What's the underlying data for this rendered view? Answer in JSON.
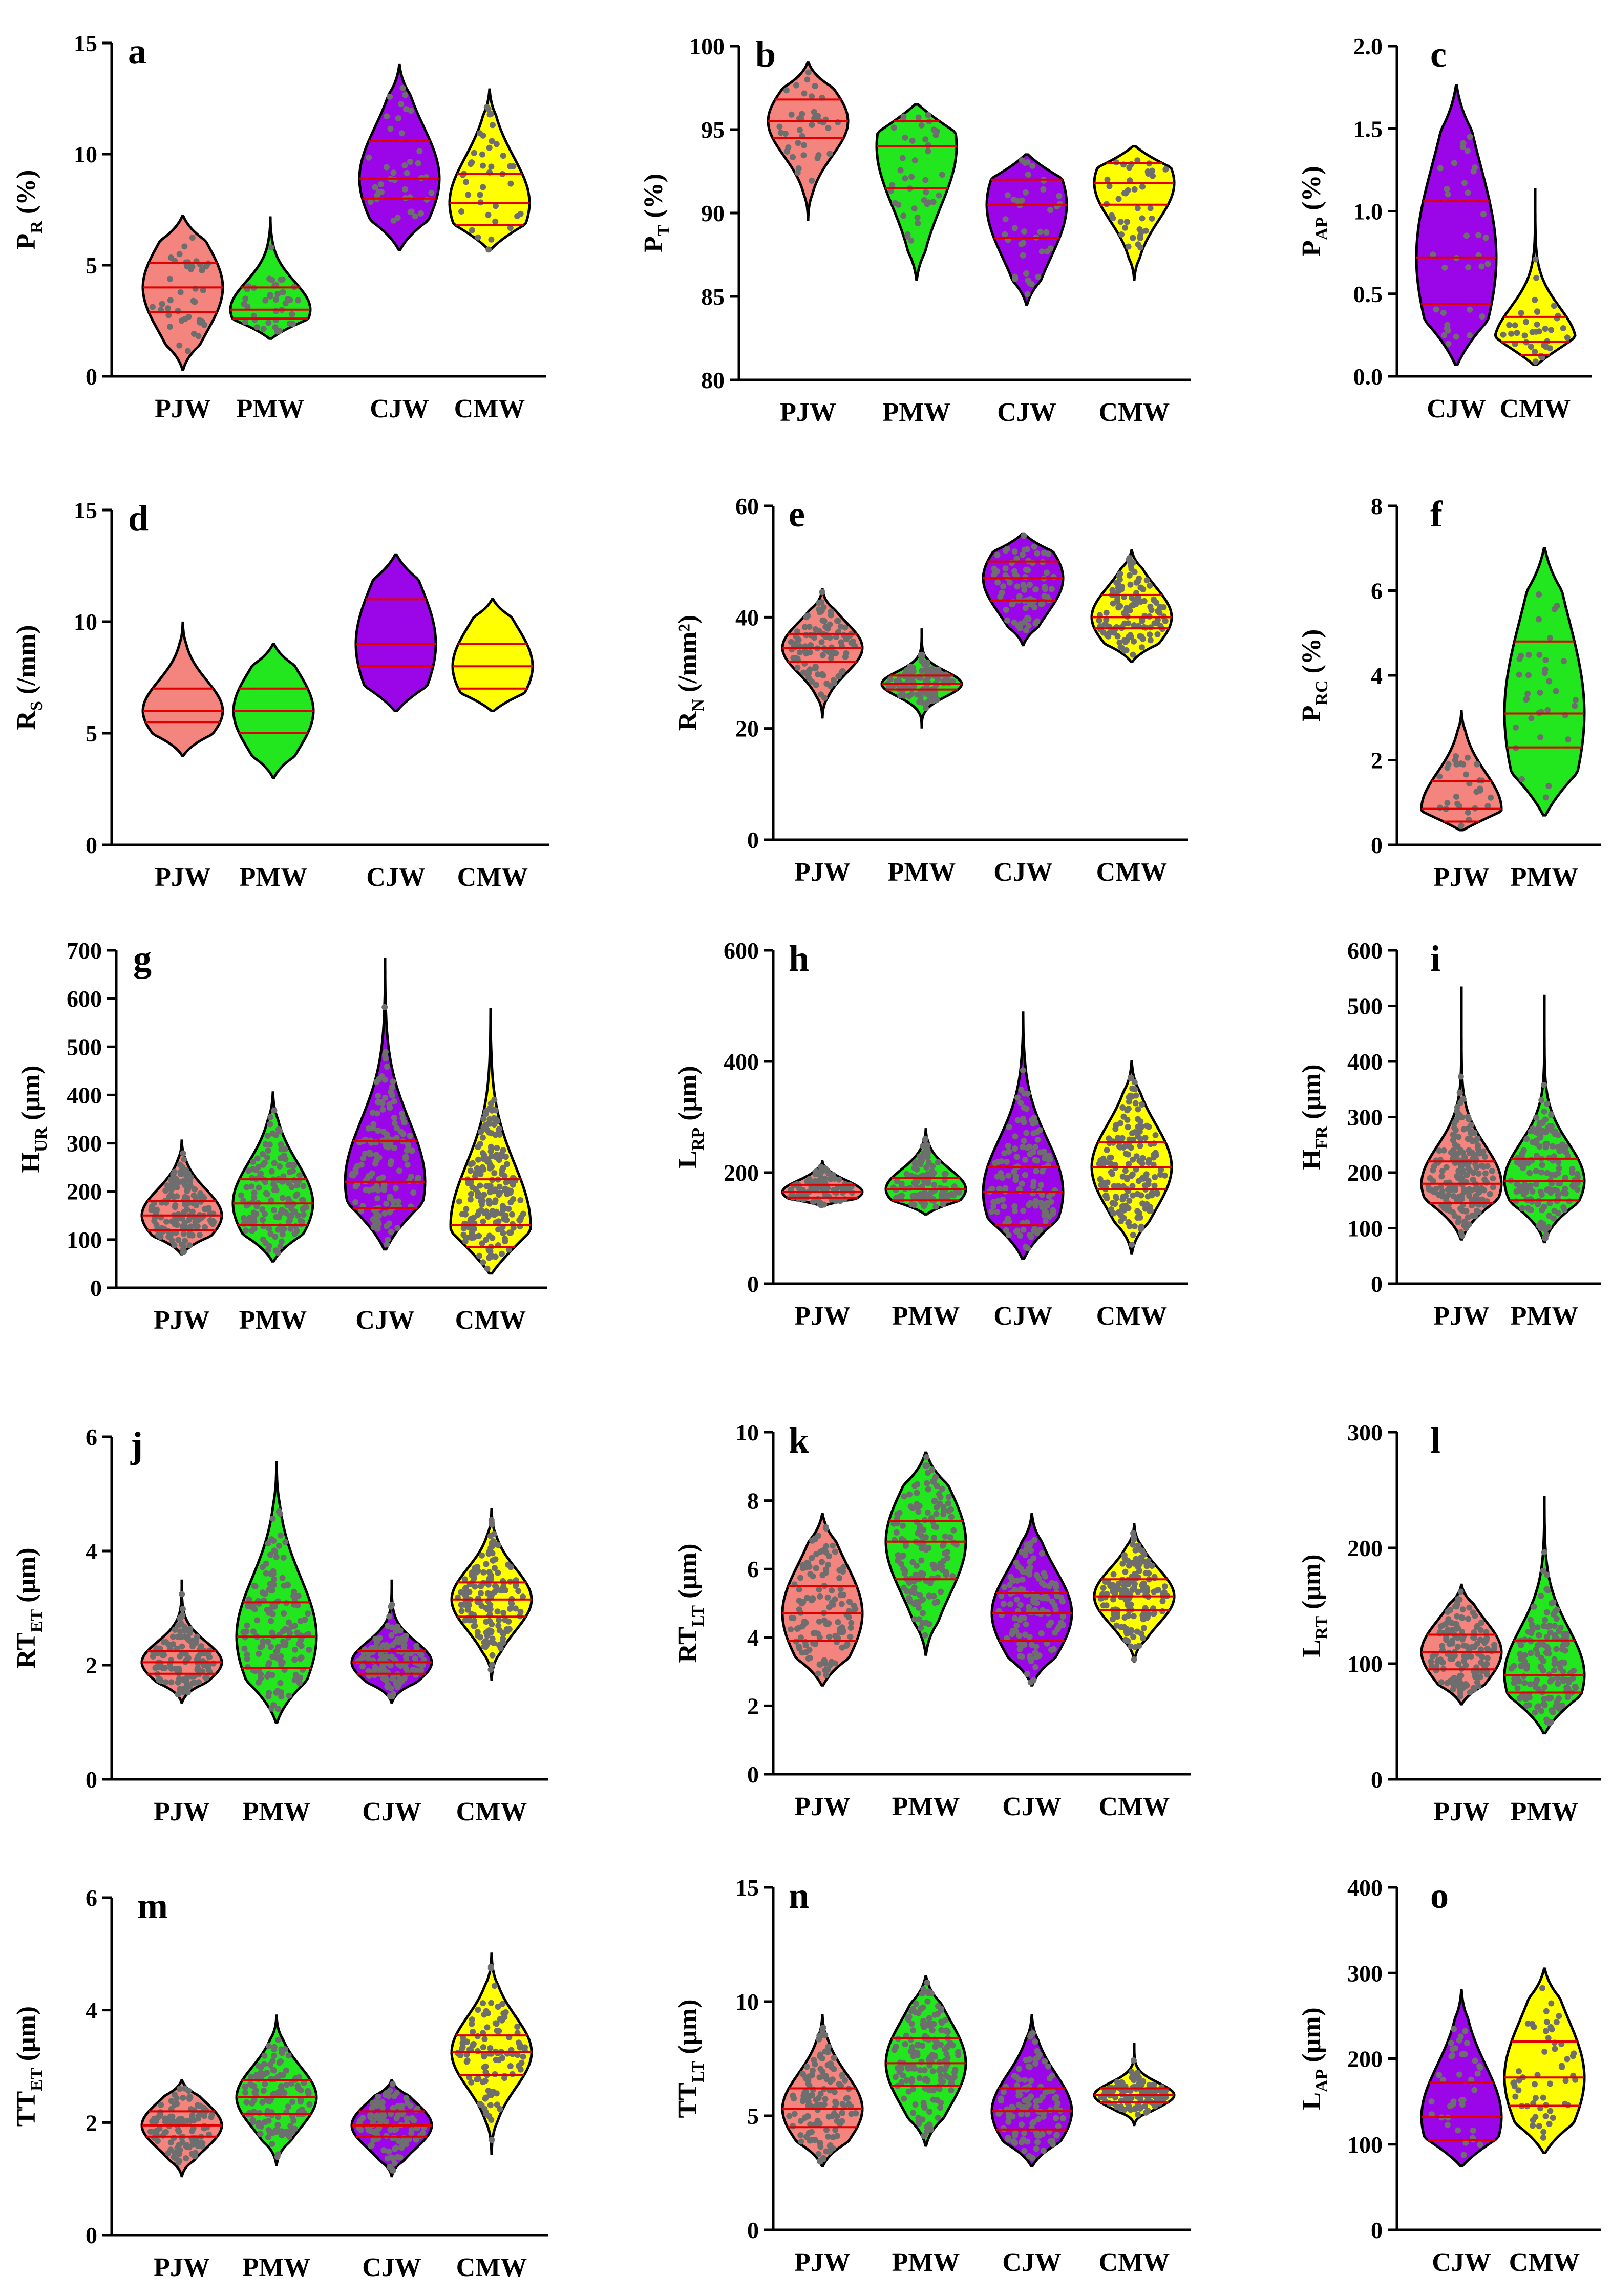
{
  "colors": {
    "PJW": "#f4857e",
    "PMW": "#22e61e",
    "CJW": "#9b06e8",
    "CMW": "#ffff00",
    "quartile": "#e00000",
    "dot": "#6e6e6e"
  },
  "chart_data": [
    {
      "letter": "a",
      "type": "violin",
      "ylabel": "P",
      "ylabel_sub": "R",
      "ylabel_suffix": " (%)",
      "ylim": [
        0,
        15
      ],
      "yticks": [
        0,
        5,
        10,
        15
      ],
      "categories": [
        "PJW",
        "PMW",
        "CJW",
        "CMW"
      ],
      "series": [
        {
          "name": "PJW",
          "min": 0.3,
          "max": 7.2,
          "q1": 2.9,
          "median": 4.0,
          "q3": 5.1,
          "n": 40
        },
        {
          "name": "PMW",
          "min": 1.7,
          "max": 7.2,
          "q1": 2.6,
          "median": 3.0,
          "q3": 4.0,
          "n": 40
        },
        {
          "name": "CJW",
          "min": 5.7,
          "max": 14.0,
          "q1": 8.0,
          "median": 8.9,
          "q3": 10.6,
          "n": 40
        },
        {
          "name": "CMW",
          "min": 5.7,
          "max": 12.9,
          "q1": 6.8,
          "median": 7.8,
          "q3": 9.1,
          "n": 40
        }
      ]
    },
    {
      "letter": "b",
      "type": "violin",
      "ylabel": "P",
      "ylabel_sub": "T",
      "ylabel_suffix": " (%)",
      "ylim": [
        80,
        100
      ],
      "yticks": [
        80,
        85,
        90,
        95,
        100
      ],
      "categories": [
        "PJW",
        "PMW",
        "CJW",
        "CMW"
      ],
      "series": [
        {
          "name": "PJW",
          "min": 89.6,
          "max": 99.0,
          "q1": 94.5,
          "median": 95.5,
          "q3": 96.8,
          "n": 40
        },
        {
          "name": "PMW",
          "min": 86.0,
          "max": 96.5,
          "q1": 91.5,
          "median": 94.0,
          "q3": 95.5,
          "n": 40
        },
        {
          "name": "CJW",
          "min": 84.5,
          "max": 93.5,
          "q1": 88.5,
          "median": 90.5,
          "q3": 92.0,
          "n": 40
        },
        {
          "name": "CMW",
          "min": 86.0,
          "max": 94.0,
          "q1": 90.5,
          "median": 91.8,
          "q3": 93.0,
          "n": 40
        }
      ]
    },
    {
      "letter": "c",
      "type": "violin",
      "ylabel": "P",
      "ylabel_sub": "AP",
      "ylabel_suffix": " (%)",
      "ylim": [
        0,
        2
      ],
      "yticks": [
        "0.0",
        "0.5",
        "1.0",
        "1.5",
        "2.0"
      ],
      "categories": [
        "CJW",
        "CMW"
      ],
      "series": [
        {
          "name": "CJW",
          "min": 0.07,
          "max": 1.76,
          "q1": 0.44,
          "median": 0.72,
          "q3": 1.06,
          "n": 35
        },
        {
          "name": "CMW",
          "min": 0.07,
          "max": 1.14,
          "q1": 0.13,
          "median": 0.21,
          "q3": 0.36,
          "n": 35
        }
      ]
    },
    {
      "letter": "d",
      "type": "violin",
      "ylabel": "R",
      "ylabel_sub": "S",
      "ylabel_suffix": " (/mm)",
      "ylim": [
        0,
        15
      ],
      "yticks": [
        0,
        5,
        10,
        15
      ],
      "categories": [
        "PJW",
        "PMW",
        "CJW",
        "CMW"
      ],
      "series": [
        {
          "name": "PJW",
          "min": 4.0,
          "max": 10.0,
          "q1": 5.5,
          "median": 6.0,
          "q3": 7.0,
          "n": 0
        },
        {
          "name": "PMW",
          "min": 3.0,
          "max": 9.0,
          "q1": 5.0,
          "median": 6.0,
          "q3": 7.0,
          "n": 0
        },
        {
          "name": "CJW",
          "min": 6.0,
          "max": 13.0,
          "q1": 8.0,
          "median": 9.0,
          "q3": 11.0,
          "n": 0
        },
        {
          "name": "CMW",
          "min": 6.0,
          "max": 11.0,
          "q1": 7.0,
          "median": 8.0,
          "q3": 9.0,
          "n": 0
        }
      ]
    },
    {
      "letter": "e",
      "type": "violin",
      "ylabel": "R",
      "ylabel_sub": "N",
      "ylabel_suffix": " (/mm²)",
      "ylim": [
        0,
        60
      ],
      "yticks": [
        0,
        20,
        40,
        60
      ],
      "categories": [
        "PJW",
        "PMW",
        "CJW",
        "CMW"
      ],
      "series": [
        {
          "name": "PJW",
          "min": 22,
          "max": 45,
          "q1": 32,
          "median": 34.5,
          "q3": 37,
          "n": 110
        },
        {
          "name": "PMW",
          "min": 20,
          "max": 38,
          "q1": 27,
          "median": 28,
          "q3": 29.5,
          "n": 110
        },
        {
          "name": "CJW",
          "min": 35,
          "max": 55,
          "q1": 43,
          "median": 47,
          "q3": 50,
          "n": 80
        },
        {
          "name": "CMW",
          "min": 32,
          "max": 52,
          "q1": 38,
          "median": 40,
          "q3": 44,
          "n": 120
        }
      ]
    },
    {
      "letter": "f",
      "type": "violin",
      "ylabel": "P",
      "ylabel_sub": "RC",
      "ylabel_suffix": " (%)",
      "ylim": [
        0,
        8
      ],
      "yticks": [
        0,
        2,
        4,
        6,
        8
      ],
      "categories": [
        "PJW",
        "PMW"
      ],
      "series": [
        {
          "name": "PJW",
          "min": 0.35,
          "max": 3.15,
          "q1": 0.55,
          "median": 0.85,
          "q3": 1.5,
          "n": 30
        },
        {
          "name": "PMW",
          "min": 0.7,
          "max": 7.0,
          "q1": 2.3,
          "median": 3.1,
          "q3": 4.8,
          "n": 35
        }
      ]
    },
    {
      "letter": "g",
      "type": "violin",
      "ylabel": "H",
      "ylabel_sub": "UR",
      "ylabel_suffix": " (μm)",
      "ylim": [
        0,
        700
      ],
      "yticks": [
        0,
        100,
        200,
        300,
        400,
        500,
        600,
        700
      ],
      "categories": [
        "PJW",
        "PMW",
        "CJW",
        "CMW"
      ],
      "series": [
        {
          "name": "PJW",
          "min": 70,
          "max": 305,
          "q1": 120,
          "median": 150,
          "q3": 180,
          "n": 150
        },
        {
          "name": "PMW",
          "min": 55,
          "max": 405,
          "q1": 130,
          "median": 175,
          "q3": 225,
          "n": 150
        },
        {
          "name": "CJW",
          "min": 80,
          "max": 685,
          "q1": 165,
          "median": 220,
          "q3": 305,
          "n": 140
        },
        {
          "name": "CMW",
          "min": 30,
          "max": 580,
          "q1": 85,
          "median": 130,
          "q3": 225,
          "n": 200
        }
      ]
    },
    {
      "letter": "h",
      "type": "violin",
      "ylabel": "L",
      "ylabel_sub": "RP",
      "ylabel_suffix": " (μm)",
      "ylim": [
        0,
        600
      ],
      "yticks": [
        0,
        200,
        400,
        600
      ],
      "categories": [
        "PJW",
        "PMW",
        "CJW",
        "CMW"
      ],
      "series": [
        {
          "name": "PJW",
          "min": 140,
          "max": 220,
          "q1": 155,
          "median": 165,
          "q3": 178,
          "n": 90
        },
        {
          "name": "PMW",
          "min": 125,
          "max": 280,
          "q1": 150,
          "median": 170,
          "q3": 190,
          "n": 110
        },
        {
          "name": "CJW",
          "min": 45,
          "max": 490,
          "q1": 105,
          "median": 165,
          "q3": 210,
          "n": 130
        },
        {
          "name": "CMW",
          "min": 55,
          "max": 400,
          "q1": 170,
          "median": 210,
          "q3": 255,
          "n": 170
        }
      ]
    },
    {
      "letter": "i",
      "type": "violin",
      "ylabel": "H",
      "ylabel_sub": "FR",
      "ylabel_suffix": " (μm)",
      "ylim": [
        0,
        600
      ],
      "yticks": [
        0,
        100,
        200,
        300,
        400,
        500,
        600
      ],
      "categories": [
        "PJW",
        "PMW"
      ],
      "series": [
        {
          "name": "PJW",
          "min": 80,
          "max": 535,
          "q1": 145,
          "median": 180,
          "q3": 220,
          "n": 200
        },
        {
          "name": "PMW",
          "min": 75,
          "max": 520,
          "q1": 150,
          "median": 185,
          "q3": 225,
          "n": 150
        }
      ]
    },
    {
      "letter": "j",
      "type": "violin",
      "ylabel": "RT",
      "ylabel_sub": "ET",
      "ylabel_suffix": " (μm)",
      "ylim": [
        0,
        6
      ],
      "yticks": [
        0,
        2,
        4,
        6
      ],
      "categories": [
        "PJW",
        "PMW",
        "CJW",
        "CMW"
      ],
      "series": [
        {
          "name": "PJW",
          "min": 1.35,
          "max": 3.5,
          "q1": 1.85,
          "median": 2.05,
          "q3": 2.25,
          "n": 120
        },
        {
          "name": "PMW",
          "min": 1.0,
          "max": 5.55,
          "q1": 1.95,
          "median": 2.5,
          "q3": 3.1,
          "n": 150
        },
        {
          "name": "CJW",
          "min": 1.35,
          "max": 3.5,
          "q1": 1.85,
          "median": 2.05,
          "q3": 2.25,
          "n": 120
        },
        {
          "name": "CMW",
          "min": 1.75,
          "max": 4.75,
          "q1": 2.85,
          "median": 3.15,
          "q3": 3.45,
          "n": 150
        }
      ]
    },
    {
      "letter": "k",
      "type": "violin",
      "ylabel": "RT",
      "ylabel_sub": "LT",
      "ylabel_suffix": " (μm)",
      "ylim": [
        0,
        10
      ],
      "yticks": [
        0,
        2,
        4,
        6,
        8,
        10
      ],
      "categories": [
        "PJW",
        "PMW",
        "CJW",
        "CMW"
      ],
      "series": [
        {
          "name": "PJW",
          "min": 2.6,
          "max": 7.6,
          "q1": 3.9,
          "median": 4.7,
          "q3": 5.5,
          "n": 130
        },
        {
          "name": "PMW",
          "min": 3.5,
          "max": 9.4,
          "q1": 5.7,
          "median": 6.8,
          "q3": 7.4,
          "n": 150
        },
        {
          "name": "CJW",
          "min": 2.6,
          "max": 7.6,
          "q1": 3.9,
          "median": 4.7,
          "q3": 5.3,
          "n": 130
        },
        {
          "name": "CMW",
          "min": 3.3,
          "max": 7.3,
          "q1": 4.8,
          "median": 5.2,
          "q3": 5.7,
          "n": 150
        }
      ]
    },
    {
      "letter": "l",
      "type": "violin",
      "ylabel": "L",
      "ylabel_sub": "RT",
      "ylabel_suffix": " (μm)",
      "ylim": [
        0,
        300
      ],
      "yticks": [
        0,
        100,
        200,
        300
      ],
      "categories": [
        "PJW",
        "PMW"
      ],
      "series": [
        {
          "name": "PJW",
          "min": 65,
          "max": 168,
          "q1": 95,
          "median": 110,
          "q3": 125,
          "n": 150
        },
        {
          "name": "PMW",
          "min": 40,
          "max": 245,
          "q1": 75,
          "median": 90,
          "q3": 120,
          "n": 150
        }
      ]
    },
    {
      "letter": "m",
      "type": "violin",
      "ylabel": "TT",
      "ylabel_sub": "ET",
      "ylabel_suffix": " (μm)",
      "ylim": [
        0,
        6
      ],
      "yticks": [
        0,
        2,
        4,
        6
      ],
      "categories": [
        "PJW",
        "PMW",
        "CJW",
        "CMW"
      ],
      "series": [
        {
          "name": "PJW",
          "min": 1.05,
          "max": 2.75,
          "q1": 1.75,
          "median": 1.95,
          "q3": 2.2,
          "n": 110
        },
        {
          "name": "PMW",
          "min": 1.25,
          "max": 3.9,
          "q1": 2.15,
          "median": 2.45,
          "q3": 2.75,
          "n": 130
        },
        {
          "name": "CJW",
          "min": 1.05,
          "max": 2.75,
          "q1": 1.75,
          "median": 1.95,
          "q3": 2.2,
          "n": 110
        },
        {
          "name": "CMW",
          "min": 1.45,
          "max": 5.0,
          "q1": 2.85,
          "median": 3.25,
          "q3": 3.55,
          "n": 110
        }
      ]
    },
    {
      "letter": "n",
      "type": "violin",
      "ylabel": "TT",
      "ylabel_sub": "LT",
      "ylabel_suffix": " (μm)",
      "ylim": [
        0,
        15
      ],
      "yticks": [
        0,
        5,
        10,
        15
      ],
      "categories": [
        "PJW",
        "PMW",
        "CJW",
        "CMW"
      ],
      "series": [
        {
          "name": "PJW",
          "min": 2.8,
          "max": 9.4,
          "q1": 4.5,
          "median": 5.3,
          "q3": 6.2,
          "n": 130
        },
        {
          "name": "PMW",
          "min": 3.7,
          "max": 11.1,
          "q1": 6.3,
          "median": 7.3,
          "q3": 8.4,
          "n": 160
        },
        {
          "name": "CJW",
          "min": 2.8,
          "max": 9.4,
          "q1": 4.4,
          "median": 5.2,
          "q3": 6.2,
          "n": 110
        },
        {
          "name": "CMW",
          "min": 4.6,
          "max": 8.2,
          "q1": 5.6,
          "median": 5.9,
          "q3": 6.2,
          "n": 110
        }
      ]
    },
    {
      "letter": "o",
      "type": "violin",
      "ylabel": "L",
      "ylabel_sub": "AP",
      "ylabel_suffix": " (μm)",
      "ylim": [
        0,
        400
      ],
      "yticks": [
        0,
        100,
        200,
        300,
        400
      ],
      "categories": [
        "CJW",
        "CMW"
      ],
      "series": [
        {
          "name": "CJW",
          "min": 75,
          "max": 280,
          "q1": 105,
          "median": 132,
          "q3": 172,
          "n": 40
        },
        {
          "name": "CMW",
          "min": 90,
          "max": 305,
          "q1": 145,
          "median": 178,
          "q3": 220,
          "n": 55
        }
      ]
    }
  ]
}
